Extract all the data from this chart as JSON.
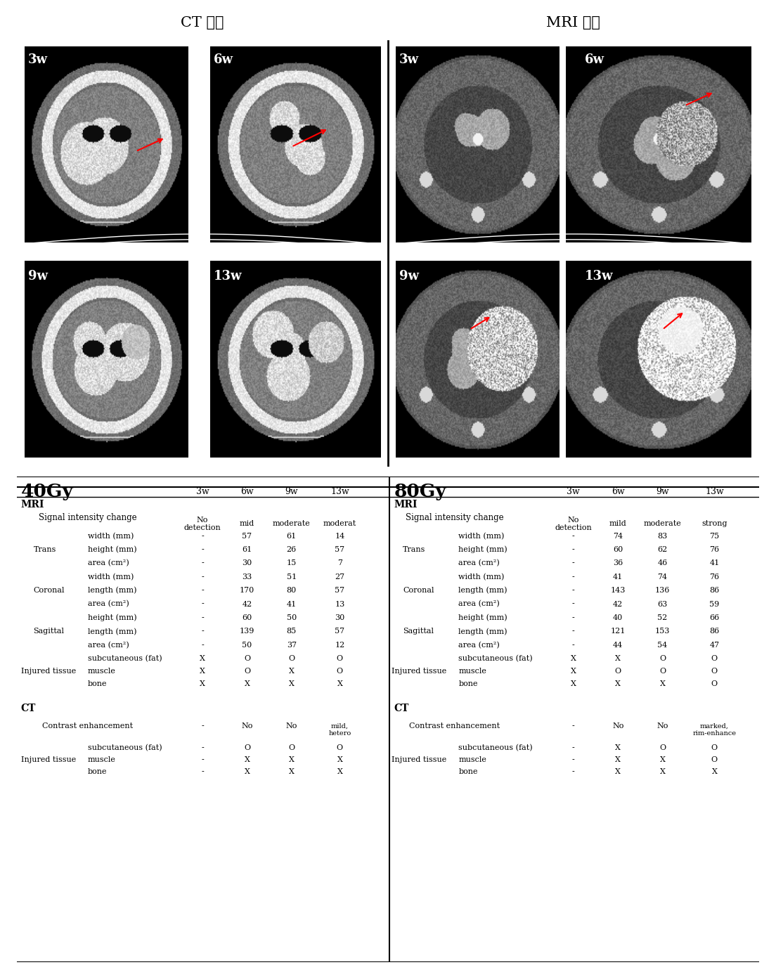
{
  "title_left": "CT 영상",
  "title_right": "MRI 영상",
  "time_labels": [
    "3w",
    "6w",
    "9w",
    "13w"
  ],
  "dose_left": "40Gy",
  "dose_right": "80Gy",
  "left_col_headers": [
    "No\ndetection",
    "mid",
    "moderate",
    "moderat"
  ],
  "right_col_headers": [
    "No\ndetection",
    "mild",
    "moderate",
    "strong"
  ],
  "mri_section_label": "MRI",
  "ct_section_label": "CT",
  "signal_intensity_label": "Signal intensity change",
  "left_table_rows": [
    [
      "",
      "width (mm)",
      "-",
      "57",
      "61",
      "14"
    ],
    [
      "Trans",
      "height (mm)",
      "-",
      "61",
      "26",
      "57"
    ],
    [
      "",
      "area (cm²)",
      "-",
      "30",
      "15",
      "7"
    ],
    [
      "",
      "width (mm)",
      "-",
      "33",
      "51",
      "27"
    ],
    [
      "Coronal",
      "length (mm)",
      "-",
      "170",
      "80",
      "57"
    ],
    [
      "",
      "area (cm²)",
      "-",
      "42",
      "41",
      "13"
    ],
    [
      "",
      "height (mm)",
      "-",
      "60",
      "50",
      "30"
    ],
    [
      "Sagittal",
      "length (mm)",
      "-",
      "139",
      "85",
      "57"
    ],
    [
      "",
      "area (cm²)",
      "-",
      "50",
      "37",
      "12"
    ]
  ],
  "right_table_rows": [
    [
      "",
      "width (mm)",
      "-",
      "74",
      "83",
      "75"
    ],
    [
      "Trans",
      "height (mm)",
      "-",
      "60",
      "62",
      "76"
    ],
    [
      "",
      "area (cm²)",
      "-",
      "36",
      "46",
      "41"
    ],
    [
      "",
      "width (mm)",
      "-",
      "41",
      "74",
      "76"
    ],
    [
      "Coronal",
      "length (mm)",
      "-",
      "143",
      "136",
      "86"
    ],
    [
      "",
      "area (cm²)",
      "-",
      "42",
      "63",
      "59"
    ],
    [
      "",
      "height (mm)",
      "-",
      "40",
      "52",
      "66"
    ],
    [
      "Sagittal",
      "length (mm)",
      "-",
      "121",
      "153",
      "86"
    ],
    [
      "",
      "area (cm²)",
      "-",
      "44",
      "54",
      "47"
    ]
  ],
  "left_injured_rows": [
    [
      "",
      "subcutaneous (fat)",
      "X",
      "O",
      "O",
      "O"
    ],
    [
      "Injured tissue",
      "muscle",
      "X",
      "O",
      "X",
      "O"
    ],
    [
      "",
      "bone",
      "X",
      "X",
      "X",
      "X"
    ]
  ],
  "right_injured_rows": [
    [
      "",
      "subcutaneous (fat)",
      "X",
      "X",
      "O",
      "O"
    ],
    [
      "Injured tissue",
      "muscle",
      "X",
      "O",
      "O",
      "O"
    ],
    [
      "",
      "bone",
      "X",
      "X",
      "X",
      "O"
    ]
  ],
  "left_ct_rows": [
    [
      "",
      "Contrast enhancement",
      "-",
      "No",
      "No",
      "mild,\nhetero"
    ]
  ],
  "right_ct_rows": [
    [
      "",
      "Contrast enhancement",
      "-",
      "No",
      "No",
      "marked,\nrim-enhance"
    ]
  ],
  "left_ct_injured": [
    [
      "",
      "subcutaneous (fat)",
      "-",
      "O",
      "O",
      "O"
    ],
    [
      "Injured tissue",
      "muscle",
      "-",
      "X",
      "X",
      "X"
    ],
    [
      "",
      "bone",
      "-",
      "X",
      "X",
      "X"
    ]
  ],
  "right_ct_injured": [
    [
      "",
      "subcutaneous (fat)",
      "-",
      "X",
      "O",
      "O"
    ],
    [
      "Injured tissue",
      "muscle",
      "-",
      "X",
      "X",
      "O"
    ],
    [
      "",
      "bone",
      "-",
      "X",
      "X",
      "X"
    ]
  ],
  "bg_color": "#ffffff",
  "text_color": "#000000",
  "image_bg": "#000000"
}
